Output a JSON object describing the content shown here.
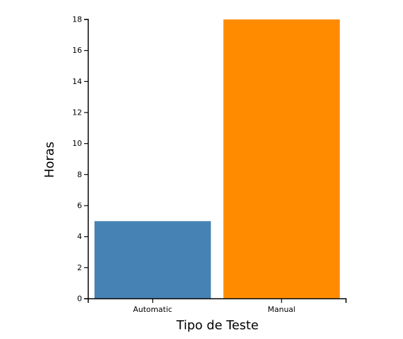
{
  "chart_data": {
    "type": "bar",
    "categories": [
      "Automatic",
      "Manual"
    ],
    "values": [
      5,
      18
    ],
    "colors": [
      "#4682b4",
      "#ff8c00"
    ],
    "title": "",
    "xlabel": "Tipo de Teste",
    "ylabel": "Horas",
    "ylim": [
      0,
      18
    ],
    "yticks": [
      "0",
      "2",
      "4",
      "6",
      "8",
      "10",
      "12",
      "14",
      "16",
      "18"
    ],
    "grid": false,
    "legend": "none"
  }
}
